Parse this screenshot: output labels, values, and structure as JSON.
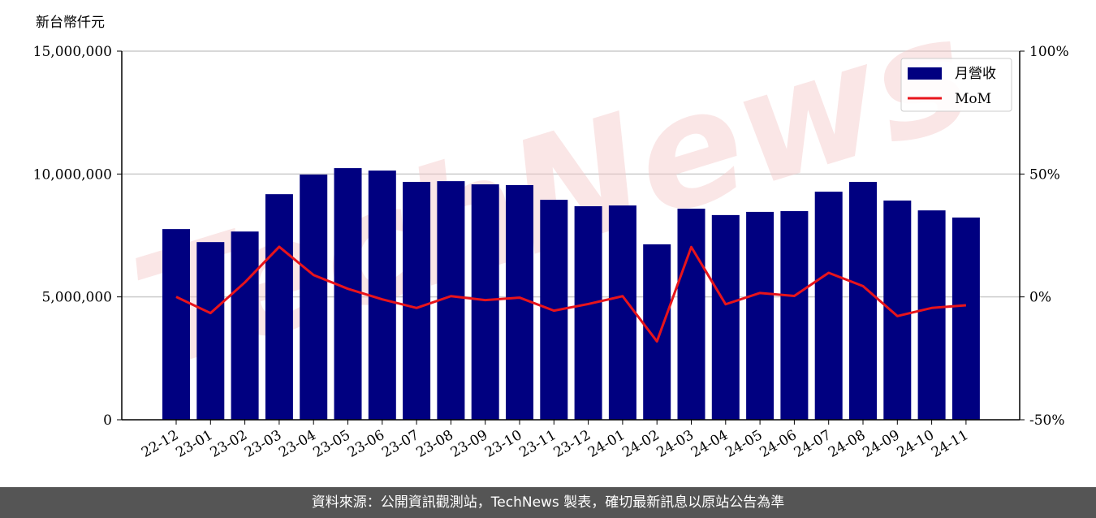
{
  "chart_data": {
    "type": "bar",
    "ylabel": "新台幣仟元",
    "watermark": "TechNews",
    "categories": [
      "22-12",
      "23-01",
      "23-02",
      "23-03",
      "23-04",
      "23-05",
      "23-06",
      "23-07",
      "23-08",
      "23-09",
      "23-10",
      "23-11",
      "23-12",
      "24-01",
      "24-02",
      "24-03",
      "24-04",
      "24-05",
      "24-06",
      "24-07",
      "24-08",
      "24-09",
      "24-10",
      "24-11"
    ],
    "series": [
      {
        "name": "月營收",
        "type": "bar",
        "color": "#000080",
        "values": [
          7760000,
          7230000,
          7660000,
          9180000,
          9980000,
          10240000,
          10140000,
          9680000,
          9710000,
          9580000,
          9550000,
          8950000,
          8690000,
          8720000,
          7140000,
          8590000,
          8330000,
          8460000,
          8490000,
          9280000,
          9680000,
          8920000,
          8520000,
          8230000
        ]
      },
      {
        "name": "MoM",
        "type": "line",
        "axis": "y2",
        "color": "#e8141b",
        "values": [
          0,
          -6.6,
          5.9,
          20.4,
          8.9,
          3.3,
          -1,
          -4.5,
          0.3,
          -1.3,
          -0.3,
          -5.6,
          -2.9,
          0.3,
          -18.1,
          20.3,
          -3,
          1.6,
          0.4,
          9.8,
          4.4,
          -7.8,
          -4.5,
          -3.4
        ]
      }
    ],
    "ylim": [
      0,
      15000000
    ],
    "yticks": [
      {
        "value": 0,
        "label": "0"
      },
      {
        "value": 5000000,
        "label": "5,000,000"
      },
      {
        "value": 10000000,
        "label": "10,000,000"
      },
      {
        "value": 15000000,
        "label": "15,000,000"
      }
    ],
    "y2lim": [
      -50,
      100
    ],
    "y2ticks": [
      {
        "value": -50,
        "label": "-50%"
      },
      {
        "value": 0,
        "label": "0%"
      },
      {
        "value": 50,
        "label": "50%"
      },
      {
        "value": 100,
        "label": "100%"
      }
    ],
    "grid": true,
    "legend": "upper right"
  },
  "footer": {
    "text": "資料來源：公開資訊觀測站，TechNews 製表，確切最新訊息以原站公告為準"
  }
}
